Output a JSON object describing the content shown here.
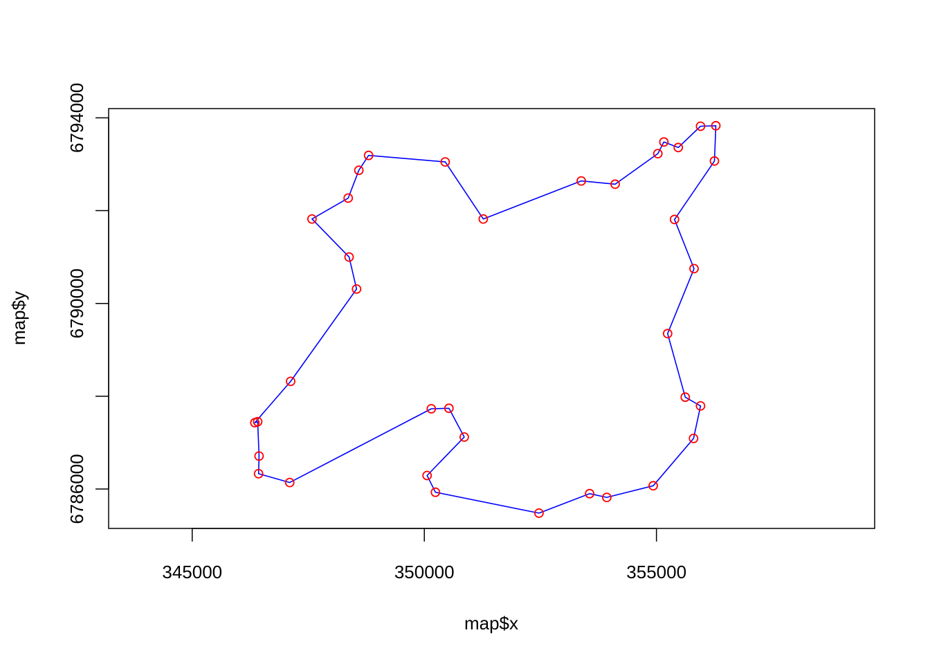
{
  "chart_data": {
    "type": "scatter",
    "xlabel": "map$x",
    "ylabel": "map$y",
    "xlim": [
      343200,
      359700
    ],
    "ylim": [
      6785150,
      6794200
    ],
    "x_ticks": [
      345000,
      350000,
      355000
    ],
    "x_tick_labels": [
      "345000",
      "350000",
      "355000"
    ],
    "y_ticks": [
      6786000,
      6788000,
      6790000,
      6792000,
      6794000
    ],
    "y_tick_labels": [
      "6786000",
      "",
      "6790000",
      "",
      "6794000"
    ],
    "grid": false,
    "legend": "none",
    "series": [
      {
        "style": "line",
        "color": "#0000ff",
        "closed": true,
        "x": [
          348800,
          350450,
          351270,
          353380,
          354110,
          355030,
          355160,
          355470,
          355950,
          356280,
          356250,
          355390,
          355810,
          355240,
          355620,
          355950,
          355800,
          354930,
          353930,
          353560,
          352470,
          350240,
          350060,
          350860,
          350530,
          350150,
          347100,
          346430,
          346440,
          346410,
          346350,
          347120,
          348540,
          348380,
          347580,
          348360,
          348590
        ],
        "y": [
          6793190,
          6793050,
          6791820,
          6792640,
          6792570,
          6793230,
          6793480,
          6793360,
          6793820,
          6793830,
          6793070,
          6791810,
          6790750,
          6789350,
          6787980,
          6787790,
          6787090,
          6786070,
          6785820,
          6785900,
          6785480,
          6785930,
          6786290,
          6787120,
          6787740,
          6787730,
          6786140,
          6786330,
          6786710,
          6787450,
          6787430,
          6788320,
          6790310,
          6791000,
          6791820,
          6792270,
          6792870
        ]
      },
      {
        "style": "points",
        "marker": "open-circle",
        "color": "#ff0000",
        "x": [
          348800,
          350450,
          351270,
          353380,
          354110,
          355030,
          355160,
          355470,
          355950,
          356280,
          356250,
          355390,
          355810,
          355240,
          355620,
          355950,
          355800,
          354930,
          353930,
          353560,
          352470,
          350240,
          350060,
          350860,
          350530,
          350150,
          347100,
          346430,
          346440,
          346410,
          346350,
          347120,
          348540,
          348380,
          347580,
          348360,
          348590
        ],
        "y": [
          6793190,
          6793050,
          6791820,
          6792640,
          6792570,
          6793230,
          6793480,
          6793360,
          6793820,
          6793830,
          6793070,
          6791810,
          6790750,
          6789350,
          6787980,
          6787790,
          6787090,
          6786070,
          6785820,
          6785900,
          6785480,
          6785930,
          6786290,
          6787120,
          6787740,
          6787730,
          6786140,
          6786330,
          6786710,
          6787450,
          6787430,
          6788320,
          6790310,
          6791000,
          6791820,
          6792270,
          6792870
        ]
      }
    ]
  }
}
